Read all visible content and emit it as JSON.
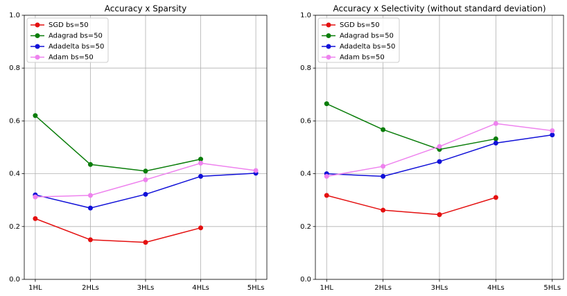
{
  "chart_data": [
    {
      "type": "line",
      "title": "Accuracy x Sparsity",
      "categories": [
        "1HL",
        "2HLs",
        "3HLs",
        "4HLs",
        "5HLs"
      ],
      "series": [
        {
          "name": "SGD bs=50",
          "color": "#e41010",
          "values": [
            0.23,
            0.15,
            0.14,
            0.195,
            null
          ]
        },
        {
          "name": "Adagrad bs=50",
          "color": "#0a7d0a",
          "values": [
            0.62,
            0.435,
            0.41,
            0.455,
            null
          ]
        },
        {
          "name": "Adadelta bs=50",
          "color": "#1010d8",
          "values": [
            0.32,
            0.27,
            0.322,
            0.39,
            0.402
          ]
        },
        {
          "name": "Adam bs=50",
          "color": "#ee82ee",
          "values": [
            0.312,
            0.318,
            0.377,
            0.44,
            0.412
          ]
        }
      ],
      "ylim": [
        0,
        1
      ],
      "yticks": [
        {
          "value": 0,
          "label": "0.0"
        },
        0.2,
        0.4,
        0.6,
        0.8,
        {
          "value": 1,
          "label": "1.0"
        }
      ],
      "grid": true,
      "legend": "upper left"
    },
    {
      "type": "line",
      "title": "Accuracy x Selectivity (without standard deviation)",
      "categories": [
        "1HL",
        "2HLs",
        "3HLs",
        "4HLs",
        "5HLs"
      ],
      "series": [
        {
          "name": "SGD bs=50",
          "color": "#e41010",
          "values": [
            0.318,
            0.262,
            0.245,
            0.31,
            null
          ]
        },
        {
          "name": "Adagrad bs=50",
          "color": "#0a7d0a",
          "values": [
            0.665,
            0.567,
            0.492,
            0.532,
            null
          ]
        },
        {
          "name": "Adadelta bs=50",
          "color": "#1010d8",
          "values": [
            0.4,
            0.39,
            0.446,
            0.516,
            0.547
          ]
        },
        {
          "name": "Adam bs=50",
          "color": "#ee82ee",
          "values": [
            0.39,
            0.428,
            0.503,
            0.59,
            0.563
          ]
        }
      ],
      "ylim": [
        0,
        1
      ],
      "yticks": [
        {
          "value": 0,
          "label": "0.0"
        },
        0.2,
        0.4,
        0.6,
        0.8,
        {
          "value": 1,
          "label": "1.0"
        }
      ],
      "grid": true,
      "legend": "upper left"
    }
  ]
}
